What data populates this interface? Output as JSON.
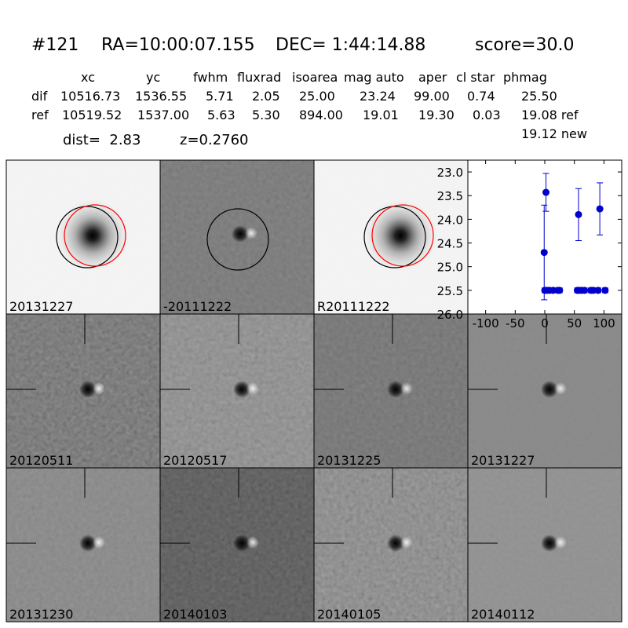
{
  "header": {
    "id": "#121",
    "ra": "RA=10:00:07.155",
    "dec": "DEC= 1:44:14.88",
    "score": "score=30.0"
  },
  "table": {
    "columns": [
      "xc",
      "yc",
      "fwhm",
      "fluxrad",
      "isoarea",
      "mag auto",
      "aper",
      "cl star",
      "phmag"
    ],
    "rows": [
      [
        "dif",
        "10516.73",
        "1536.55",
        "5.71",
        "2.05",
        "25.00",
        "23.24",
        "99.00",
        "0.74",
        "25.50"
      ],
      [
        "ref",
        "10519.52",
        "1537.00",
        "5.63",
        "5.30",
        "894.00",
        "19.01",
        "19.30",
        "0.03",
        "19.08 ref"
      ]
    ],
    "phmag_new": "19.12 new"
  },
  "dist": "dist=  2.83",
  "z": "z=0.2760",
  "panels": [
    {
      "label": "20131227"
    },
    {
      "label": "-20111222"
    },
    {
      "label": "R20111222"
    },
    {
      "label": "20120511"
    },
    {
      "label": "20120517"
    },
    {
      "label": "20131225"
    },
    {
      "label": "20131227",
      "color": "#ff0000"
    },
    {
      "label": "20131230"
    },
    {
      "label": "20140103"
    },
    {
      "label": "20140105"
    },
    {
      "label": "20140112"
    }
  ],
  "chart_data": {
    "type": "scatter",
    "color": "#0000cc",
    "x": [
      -1,
      2,
      0,
      4,
      8,
      14,
      22,
      25,
      55,
      58,
      62,
      67,
      78,
      82,
      90,
      102,
      57,
      93
    ],
    "values": [
      24.7,
      23.43,
      25.5,
      25.5,
      25.5,
      25.5,
      25.5,
      25.5,
      25.5,
      25.5,
      25.5,
      25.5,
      25.5,
      25.5,
      25.5,
      25.5,
      23.9,
      23.78
    ],
    "errors": [
      1.0,
      0.4,
      0.05,
      0.05,
      0.05,
      0.05,
      0.05,
      0.05,
      0.05,
      0.05,
      0.05,
      0.05,
      0.05,
      0.05,
      0.05,
      0.05,
      0.55,
      0.55
    ],
    "xlim": [
      -130,
      130
    ],
    "ylim": [
      22.75,
      26.0
    ],
    "y_inverted": true,
    "xticks": [
      -100,
      -50,
      0,
      50,
      100
    ],
    "yticks": [
      {
        "value": 23.0,
        "label": "23.0"
      },
      {
        "value": 23.5,
        "label": "23.5"
      },
      {
        "value": 24.0,
        "label": "24.0"
      },
      {
        "value": 24.5,
        "label": "24.5"
      },
      {
        "value": 25.0,
        "label": "25.0"
      },
      {
        "value": 25.5,
        "label": "25.5"
      },
      {
        "value": 26.0,
        "label": "26.0"
      }
    ]
  }
}
